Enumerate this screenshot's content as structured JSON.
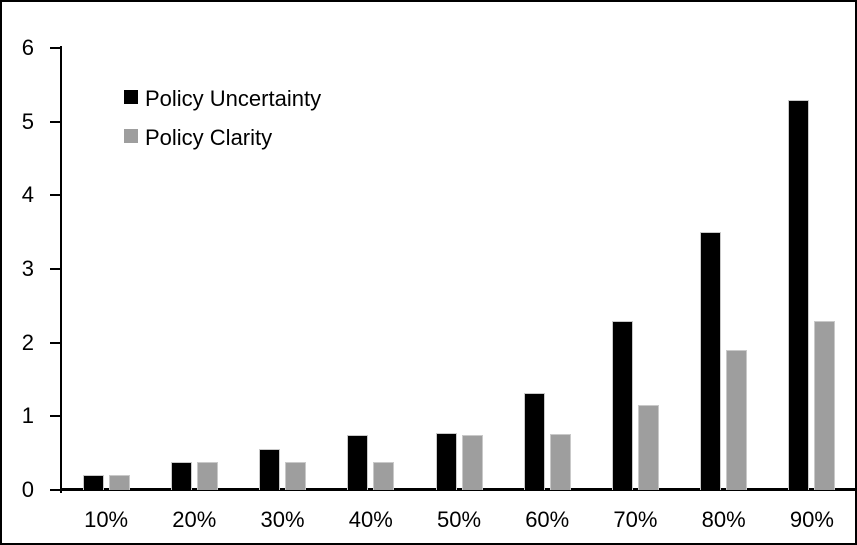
{
  "chart_data": {
    "type": "bar",
    "title": "",
    "xlabel": "",
    "ylabel": "",
    "categories": [
      "10%",
      "20%",
      "30%",
      "40%",
      "50%",
      "60%",
      "70%",
      "80%",
      "90%"
    ],
    "series": [
      {
        "name": "Policy Uncertainty",
        "color": "#000000",
        "values": [
          0.2,
          0.38,
          0.56,
          0.75,
          0.77,
          1.32,
          2.3,
          3.5,
          5.3
        ]
      },
      {
        "name": "Policy Clarity",
        "color": "#9e9e9e",
        "values": [
          0.2,
          0.38,
          0.38,
          0.38,
          0.75,
          0.76,
          1.15,
          1.9,
          2.3
        ]
      }
    ],
    "ylim": [
      0,
      6
    ],
    "yticks": [
      0,
      1,
      2,
      3,
      4,
      5,
      6
    ],
    "grid": false,
    "legend_position": "top-left"
  }
}
